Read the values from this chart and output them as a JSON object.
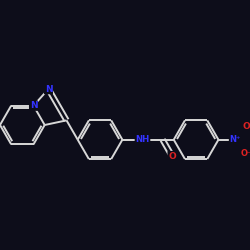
{
  "background_color": "#0d0d1a",
  "bond_color": "#d8d8d8",
  "N_color": "#3333ff",
  "O_color": "#dd2222",
  "bond_width": 1.4,
  "figsize": [
    2.5,
    2.5
  ],
  "dpi": 100,
  "xlim": [
    -1.0,
    9.5
  ],
  "ylim": [
    -3.5,
    3.5
  ]
}
